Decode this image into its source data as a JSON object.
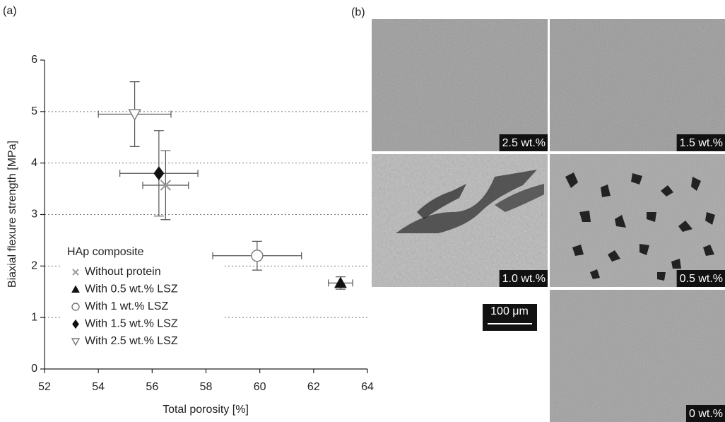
{
  "chart_data": {
    "type": "scatter",
    "panel_label": "(a)",
    "x_label": "Total porosity [%]",
    "y_label": "Biaxial flexure strength [MPa]",
    "legend_title": "HAp composite",
    "xlim": [
      52,
      64
    ],
    "xticks": [
      52,
      54,
      56,
      58,
      60,
      62,
      64
    ],
    "ylim": [
      0,
      6
    ],
    "yticks": [
      0,
      1,
      2,
      3,
      4,
      5,
      6
    ],
    "grid": true,
    "series": [
      {
        "name": "Without protein",
        "marker": "x",
        "color": "#999999",
        "filled": false,
        "x": [
          56.5
        ],
        "values": [
          3.57
        ],
        "xerr": [
          0.85
        ],
        "yerr": [
          0.67
        ]
      },
      {
        "name": "With 0.5 wt.% LSZ",
        "marker": "triangle-up",
        "color": "#111111",
        "filled": true,
        "x": [
          63.0
        ],
        "values": [
          1.67
        ],
        "xerr": [
          0.45
        ],
        "yerr": [
          0.12
        ]
      },
      {
        "name": "With 1 wt.% LSZ",
        "marker": "circle",
        "color": "#777777",
        "filled": false,
        "x": [
          59.9
        ],
        "values": [
          2.2
        ],
        "xerr": [
          1.65
        ],
        "yerr": [
          0.28
        ]
      },
      {
        "name": "With 1.5 wt.% LSZ",
        "marker": "diamond",
        "color": "#111111",
        "filled": true,
        "x": [
          56.25
        ],
        "values": [
          3.8
        ],
        "xerr": [
          1.45
        ],
        "yerr": [
          0.83
        ]
      },
      {
        "name": "With 2.5 wt.% LSZ",
        "marker": "triangle-down",
        "color": "#777777",
        "filled": false,
        "x": [
          55.35
        ],
        "values": [
          4.95
        ],
        "xerr": [
          1.35
        ],
        "yerr": [
          0.63
        ]
      }
    ]
  },
  "micrographs": {
    "panel_label": "(b)",
    "labels": [
      "2.5 wt.%",
      "1.5 wt.%",
      "1.0 wt.%",
      "0.5 wt.%",
      "0 wt.%"
    ],
    "scale_bar": "100 μm"
  }
}
